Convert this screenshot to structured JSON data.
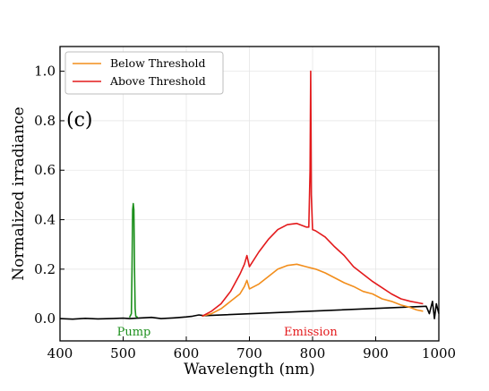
{
  "chart_data": {
    "type": "line",
    "xlabel": "Wavelength (nm)",
    "ylabel": "Normalized irradiance",
    "xlim": [
      400,
      1000
    ],
    "ylim": [
      -0.09,
      1.1
    ],
    "xticks": [
      400,
      500,
      600,
      700,
      800,
      900,
      1000
    ],
    "yticks": [
      0.0,
      0.2,
      0.4,
      0.6,
      0.8,
      1.0
    ],
    "ytick_labels": [
      "0.0",
      "0.2",
      "0.4",
      "0.6",
      "0.8",
      "1.0"
    ],
    "grid": true,
    "legend_position": "top-left",
    "panel_label": "(c)",
    "series": [
      {
        "name": "Below Threshold",
        "color": "#f28e1c",
        "x": [
          625,
          640,
          655,
          670,
          685,
          692,
          696,
          700,
          715,
          730,
          745,
          760,
          775,
          790,
          805,
          820,
          835,
          850,
          865,
          880,
          895,
          910,
          925,
          940,
          955,
          965,
          975
        ],
        "y": [
          0.01,
          0.02,
          0.04,
          0.07,
          0.1,
          0.13,
          0.155,
          0.12,
          0.14,
          0.17,
          0.2,
          0.215,
          0.22,
          0.21,
          0.2,
          0.185,
          0.165,
          0.145,
          0.13,
          0.11,
          0.1,
          0.08,
          0.07,
          0.055,
          0.045,
          0.035,
          0.03
        ]
      },
      {
        "name": "Above Threshold",
        "color": "#e31a1c",
        "x": [
          625,
          640,
          655,
          670,
          685,
          692,
          696,
          700,
          715,
          730,
          745,
          760,
          775,
          790,
          794,
          796,
          797,
          798,
          800,
          805,
          820,
          835,
          850,
          865,
          880,
          895,
          910,
          925,
          940,
          955,
          965,
          975
        ],
        "y": [
          0.01,
          0.03,
          0.06,
          0.11,
          0.18,
          0.22,
          0.255,
          0.21,
          0.27,
          0.32,
          0.36,
          0.38,
          0.385,
          0.37,
          0.37,
          0.6,
          1.0,
          0.5,
          0.36,
          0.355,
          0.33,
          0.29,
          0.255,
          0.21,
          0.18,
          0.15,
          0.125,
          0.1,
          0.08,
          0.07,
          0.065,
          0.06
        ]
      },
      {
        "name": "",
        "color": "#000000",
        "x": [
          400,
          420,
          440,
          460,
          480,
          500,
          510,
          545,
          560,
          580,
          600,
          610,
          620,
          628,
          980,
          985,
          990,
          993,
          996,
          1000
        ],
        "y": [
          0.0,
          -0.002,
          0.001,
          -0.001,
          0.0,
          0.002,
          0.0,
          0.005,
          0.0,
          0.003,
          0.007,
          0.01,
          0.015,
          0.012,
          0.05,
          0.02,
          0.07,
          0.0,
          0.06,
          0.02
        ]
      },
      {
        "name": "",
        "color": "#1c8f1c",
        "x": [
          510,
          513,
          514,
          515,
          516,
          517,
          518,
          519,
          520,
          523
        ],
        "y": [
          0.005,
          0.02,
          0.2,
          0.44,
          0.465,
          0.44,
          0.2,
          0.04,
          0.01,
          0.005
        ]
      }
    ],
    "annotations": [
      {
        "text": "Pump",
        "x": 517,
        "y": -0.06,
        "color": "#1c8f1c"
      },
      {
        "text": "Emission",
        "x": 797,
        "y": -0.06,
        "color": "#e31a1c"
      }
    ]
  }
}
